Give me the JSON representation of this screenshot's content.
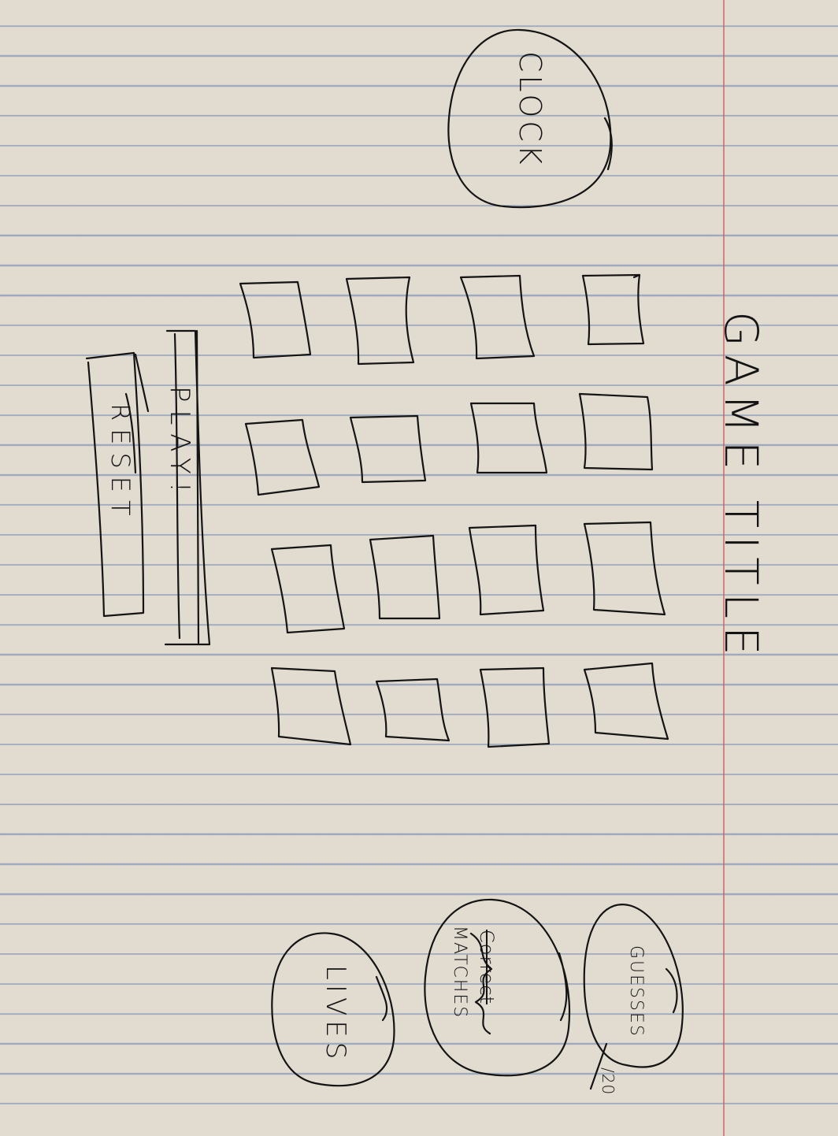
{
  "game_title": "GAME TITLE",
  "clock": {
    "label": "CLOCK"
  },
  "card_grid": {
    "rows": 4,
    "columns": 4
  },
  "buttons": {
    "play_label": "PLAY!",
    "reset_label": "RESET"
  },
  "stats": {
    "guesses_label": "GUESSES",
    "guesses_total": "/20",
    "matches_crossed_out": "Correct",
    "matches_label": "MATCHES",
    "lives_label": "LIVES"
  },
  "colors": {
    "paper": "#e2dbd0",
    "rule_lines": "#6982af",
    "margin_line": "#cd6464",
    "ink": "#141414"
  }
}
